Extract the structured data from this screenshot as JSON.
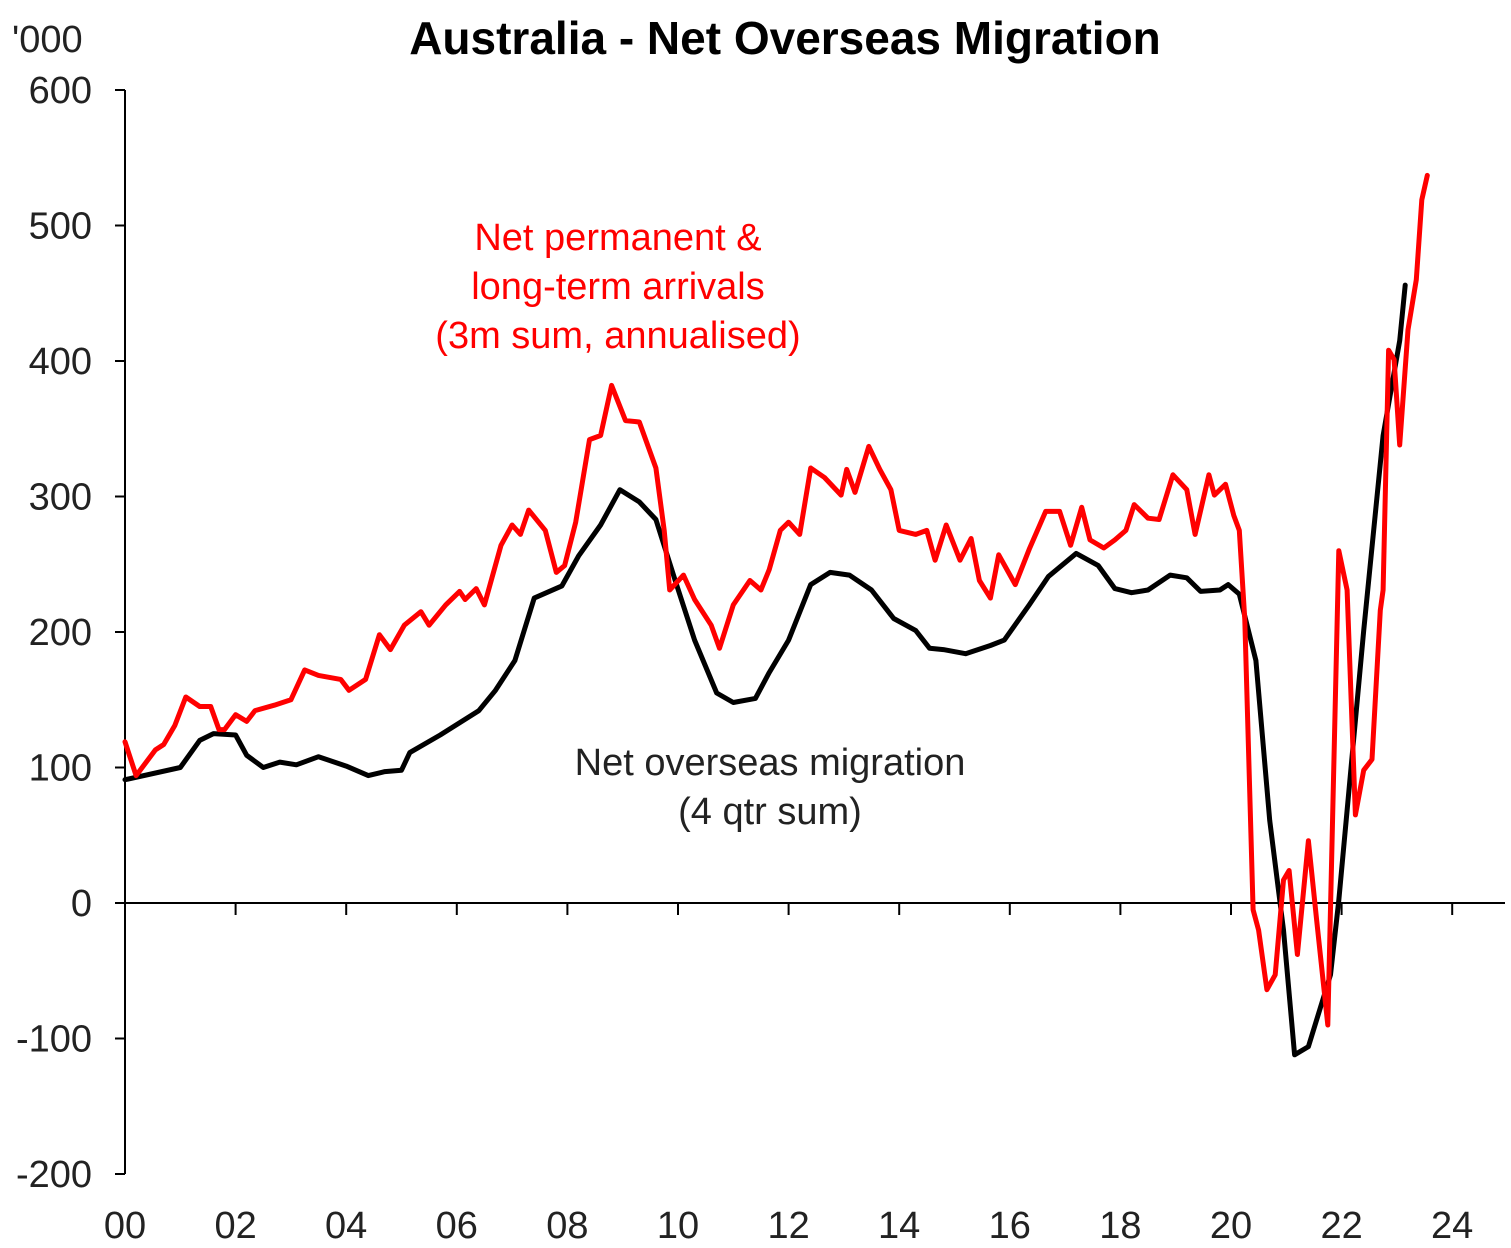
{
  "chart_data": {
    "type": "line",
    "title": "Australia - Net Overseas Migration",
    "ylabel": "'000",
    "xlabel": "",
    "xlim": [
      2000,
      2024.8
    ],
    "ylim": [
      -200,
      600
    ],
    "yticks": [
      600,
      500,
      400,
      300,
      200,
      100,
      0,
      -100,
      -200
    ],
    "xticks": [
      2000,
      2002,
      2004,
      2006,
      2008,
      2010,
      2012,
      2014,
      2016,
      2018,
      2020,
      2022,
      2024
    ],
    "xtick_labels": [
      "00",
      "02",
      "04",
      "06",
      "08",
      "10",
      "12",
      "14",
      "16",
      "18",
      "20",
      "22",
      "24"
    ],
    "grid": false,
    "annotations": [
      {
        "series": "red",
        "lines": [
          "Net permanent &",
          "long-term arrivals",
          "(3m sum, annualised)"
        ],
        "color": "#ff0000"
      },
      {
        "series": "black",
        "lines": [
          "Net overseas migration",
          "(4 qtr sum)"
        ],
        "color": "#222222"
      }
    ],
    "series": [
      {
        "name": "Net overseas migration (4 qtr sum)",
        "key": "black",
        "color": "#000000",
        "points": [
          [
            2000.0,
            91
          ],
          [
            2001.0,
            100
          ],
          [
            2001.35,
            120
          ],
          [
            2001.6,
            125
          ],
          [
            2002.0,
            124
          ],
          [
            2002.2,
            109
          ],
          [
            2002.5,
            100
          ],
          [
            2002.8,
            104
          ],
          [
            2003.1,
            102
          ],
          [
            2003.5,
            108
          ],
          [
            2004.0,
            101
          ],
          [
            2004.4,
            94
          ],
          [
            2004.7,
            97
          ],
          [
            2005.0,
            98
          ],
          [
            2005.15,
            111
          ],
          [
            2005.7,
            124
          ],
          [
            2006.4,
            142
          ],
          [
            2006.7,
            157
          ],
          [
            2007.05,
            179
          ],
          [
            2007.4,
            225
          ],
          [
            2007.9,
            234
          ],
          [
            2008.2,
            256
          ],
          [
            2008.6,
            279
          ],
          [
            2008.95,
            305
          ],
          [
            2009.3,
            296
          ],
          [
            2009.6,
            283
          ],
          [
            2009.95,
            238
          ],
          [
            2010.3,
            194
          ],
          [
            2010.7,
            155
          ],
          [
            2011.0,
            148
          ],
          [
            2011.4,
            151
          ],
          [
            2011.65,
            170
          ],
          [
            2012.0,
            194
          ],
          [
            2012.4,
            235
          ],
          [
            2012.75,
            244
          ],
          [
            2013.1,
            242
          ],
          [
            2013.5,
            231
          ],
          [
            2013.9,
            210
          ],
          [
            2014.3,
            201
          ],
          [
            2014.55,
            188
          ],
          [
            2014.8,
            187
          ],
          [
            2015.2,
            184
          ],
          [
            2015.65,
            190
          ],
          [
            2015.9,
            194
          ],
          [
            2016.35,
            220
          ],
          [
            2016.7,
            241
          ],
          [
            2017.2,
            258
          ],
          [
            2017.6,
            249
          ],
          [
            2017.9,
            232
          ],
          [
            2018.2,
            229
          ],
          [
            2018.5,
            231
          ],
          [
            2018.9,
            242
          ],
          [
            2019.2,
            240
          ],
          [
            2019.45,
            230
          ],
          [
            2019.8,
            231
          ],
          [
            2019.95,
            235
          ],
          [
            2020.15,
            228
          ],
          [
            2020.45,
            179
          ],
          [
            2020.7,
            61
          ],
          [
            2020.95,
            -20
          ],
          [
            2021.15,
            -112
          ],
          [
            2021.4,
            -106
          ],
          [
            2021.8,
            -53
          ],
          [
            2021.95,
            2
          ],
          [
            2022.4,
            201
          ],
          [
            2022.75,
            345
          ],
          [
            2023.05,
            415
          ],
          [
            2023.15,
            456
          ]
        ]
      },
      {
        "name": "Net permanent & long-term arrivals (3m sum, annualised)",
        "key": "red",
        "color": "#ff0000",
        "points": [
          [
            2000.0,
            119
          ],
          [
            2000.2,
            94
          ],
          [
            2000.55,
            113
          ],
          [
            2000.7,
            117
          ],
          [
            2000.9,
            131
          ],
          [
            2001.1,
            152
          ],
          [
            2001.35,
            145
          ],
          [
            2001.55,
            145
          ],
          [
            2001.7,
            128
          ],
          [
            2001.8,
            128
          ],
          [
            2002.0,
            139
          ],
          [
            2002.2,
            134
          ],
          [
            2002.35,
            142
          ],
          [
            2002.7,
            146
          ],
          [
            2003.0,
            150
          ],
          [
            2003.25,
            172
          ],
          [
            2003.5,
            168
          ],
          [
            2003.9,
            165
          ],
          [
            2004.05,
            157
          ],
          [
            2004.35,
            165
          ],
          [
            2004.6,
            198
          ],
          [
            2004.8,
            187
          ],
          [
            2005.05,
            205
          ],
          [
            2005.35,
            215
          ],
          [
            2005.5,
            205
          ],
          [
            2005.8,
            220
          ],
          [
            2006.05,
            230
          ],
          [
            2006.15,
            224
          ],
          [
            2006.35,
            232
          ],
          [
            2006.5,
            220
          ],
          [
            2006.8,
            264
          ],
          [
            2007.0,
            279
          ],
          [
            2007.15,
            272
          ],
          [
            2007.3,
            290
          ],
          [
            2007.6,
            275
          ],
          [
            2007.8,
            244
          ],
          [
            2007.95,
            249
          ],
          [
            2008.15,
            281
          ],
          [
            2008.4,
            342
          ],
          [
            2008.6,
            345
          ],
          [
            2008.8,
            382
          ],
          [
            2009.05,
            356
          ],
          [
            2009.3,
            355
          ],
          [
            2009.6,
            321
          ],
          [
            2009.75,
            275
          ],
          [
            2009.85,
            231
          ],
          [
            2010.1,
            242
          ],
          [
            2010.3,
            224
          ],
          [
            2010.6,
            205
          ],
          [
            2010.75,
            188
          ],
          [
            2011.0,
            220
          ],
          [
            2011.3,
            238
          ],
          [
            2011.5,
            231
          ],
          [
            2011.65,
            246
          ],
          [
            2011.85,
            275
          ],
          [
            2012.0,
            281
          ],
          [
            2012.2,
            272
          ],
          [
            2012.4,
            321
          ],
          [
            2012.65,
            314
          ],
          [
            2012.95,
            301
          ],
          [
            2013.05,
            320
          ],
          [
            2013.2,
            303
          ],
          [
            2013.45,
            337
          ],
          [
            2013.65,
            320
          ],
          [
            2013.85,
            305
          ],
          [
            2014.0,
            275
          ],
          [
            2014.3,
            272
          ],
          [
            2014.5,
            275
          ],
          [
            2014.65,
            253
          ],
          [
            2014.85,
            279
          ],
          [
            2015.1,
            253
          ],
          [
            2015.3,
            269
          ],
          [
            2015.45,
            238
          ],
          [
            2015.65,
            225
          ],
          [
            2015.8,
            257
          ],
          [
            2016.1,
            235
          ],
          [
            2016.35,
            261
          ],
          [
            2016.65,
            289
          ],
          [
            2016.9,
            289
          ],
          [
            2017.1,
            264
          ],
          [
            2017.3,
            292
          ],
          [
            2017.45,
            268
          ],
          [
            2017.7,
            262
          ],
          [
            2017.9,
            268
          ],
          [
            2018.1,
            275
          ],
          [
            2018.25,
            294
          ],
          [
            2018.5,
            284
          ],
          [
            2018.7,
            283
          ],
          [
            2018.95,
            316
          ],
          [
            2019.2,
            305
          ],
          [
            2019.35,
            272
          ],
          [
            2019.6,
            316
          ],
          [
            2019.7,
            301
          ],
          [
            2019.9,
            309
          ],
          [
            2020.05,
            286
          ],
          [
            2020.15,
            275
          ],
          [
            2020.25,
            209
          ],
          [
            2020.4,
            -5
          ],
          [
            2020.5,
            -20
          ],
          [
            2020.65,
            -64
          ],
          [
            2020.8,
            -53
          ],
          [
            2020.95,
            17
          ],
          [
            2021.05,
            24
          ],
          [
            2021.2,
            -38
          ],
          [
            2021.4,
            46
          ],
          [
            2021.55,
            -13
          ],
          [
            2021.75,
            -90
          ],
          [
            2021.95,
            260
          ],
          [
            2022.1,
            231
          ],
          [
            2022.25,
            65
          ],
          [
            2022.4,
            98
          ],
          [
            2022.55,
            106
          ],
          [
            2022.7,
            216
          ],
          [
            2022.75,
            231
          ],
          [
            2022.85,
            408
          ],
          [
            2022.95,
            401
          ],
          [
            2023.05,
            338
          ],
          [
            2023.2,
            423
          ],
          [
            2023.35,
            460
          ],
          [
            2023.45,
            519
          ],
          [
            2023.55,
            537
          ]
        ]
      }
    ]
  }
}
